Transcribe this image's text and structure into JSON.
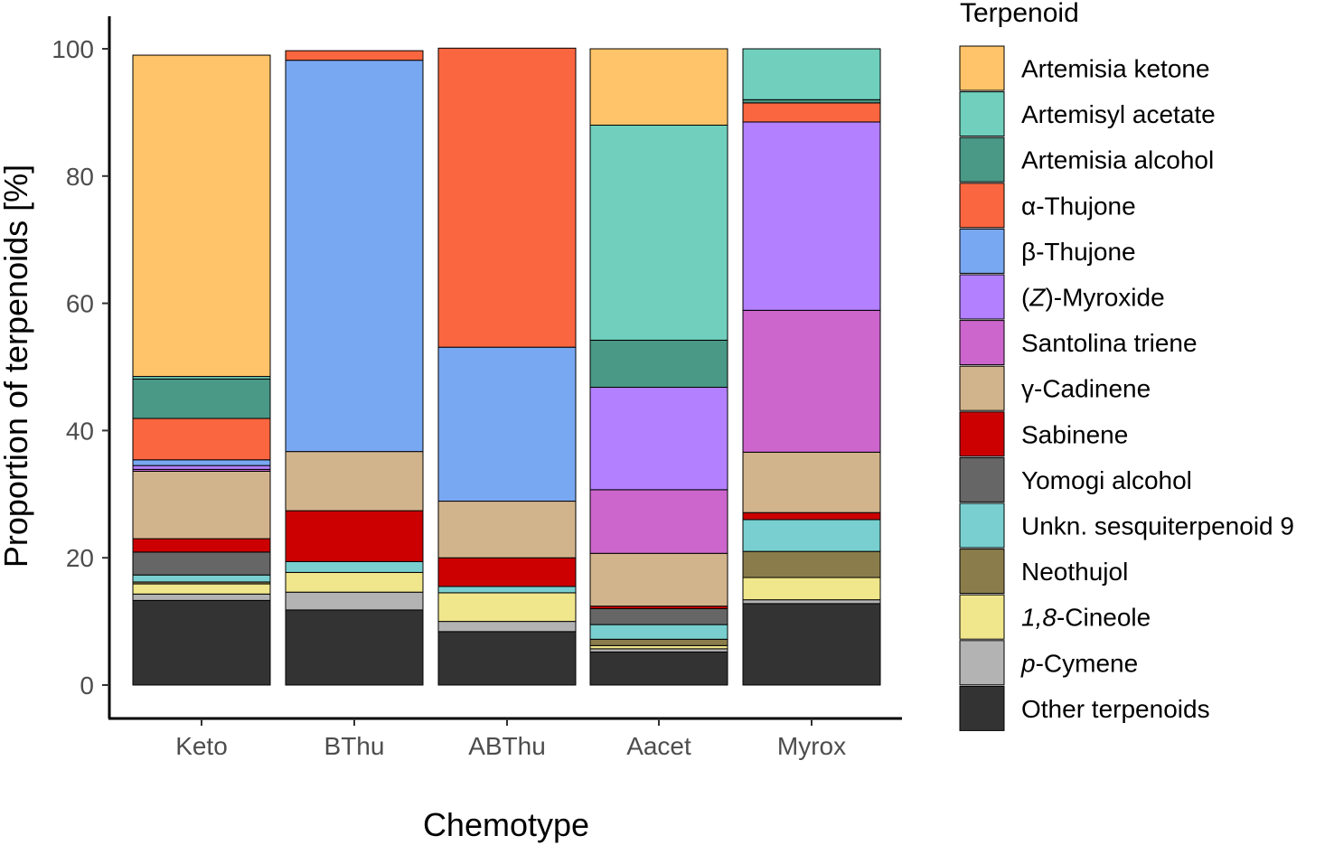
{
  "chart_data": {
    "type": "bar",
    "stacked": true,
    "xlabel": "Chemotype",
    "ylabel": "Proportion of terpenoids [%]",
    "ylim": [
      0,
      100
    ],
    "yticks": [
      0,
      20,
      40,
      60,
      80,
      100
    ],
    "categories": [
      "Keto",
      "BThu",
      "ABThu",
      "Aacet",
      "Myrox"
    ],
    "legend_title": "Terpenoid",
    "series": [
      {
        "name": "Other terpenoids",
        "color": "#333333",
        "values": [
          13.3,
          11.8,
          8.4,
          5.2,
          12.8
        ]
      },
      {
        "name": "p-Cymene",
        "prefix": "p",
        "suffix": "-Cymene",
        "color": "#b3b3b3",
        "values": [
          1.0,
          2.8,
          1.6,
          0.5,
          0.6
        ]
      },
      {
        "name": "1,8-Cineole",
        "prefix": "1,8",
        "suffix": "-Cineole",
        "color": "#f0e68c",
        "values": [
          1.6,
          3.1,
          4.5,
          0.5,
          3.5
        ]
      },
      {
        "name": "Neothujol",
        "color": "#8b7d4b",
        "values": [
          0.3,
          0.0,
          0.0,
          1.0,
          4.1
        ]
      },
      {
        "name": "Unkn. sesquiterpenoid 9",
        "color": "#79cfcf",
        "values": [
          1.1,
          1.7,
          1.0,
          2.3,
          5.0
        ]
      },
      {
        "name": "Yomogi alcohol",
        "color": "#666666",
        "values": [
          3.6,
          0.0,
          0.0,
          2.5,
          0.0
        ]
      },
      {
        "name": "Sabinene",
        "color": "#cc0000",
        "values": [
          2.1,
          8.0,
          4.5,
          0.4,
          1.1
        ]
      },
      {
        "name": "γ-Cadinene",
        "color": "#d2b48c",
        "values": [
          10.6,
          9.3,
          8.9,
          8.3,
          9.5
        ]
      },
      {
        "name": "Santolina triene",
        "color": "#cc66cc",
        "values": [
          0.3,
          0.0,
          0.0,
          10.0,
          22.3
        ]
      },
      {
        "name": "(Z)-Myroxide",
        "prefix": "(",
        "italic": "Z",
        "suffix": ")-Myroxide",
        "color": "#b380ff",
        "values": [
          0.6,
          0.0,
          0.0,
          16.1,
          29.6
        ]
      },
      {
        "name": "β-Thujone",
        "color": "#79a8f2",
        "values": [
          0.9,
          61.5,
          24.2,
          0.0,
          0.0
        ]
      },
      {
        "name": "α-Thujone",
        "color": "#fa6640",
        "values": [
          6.5,
          1.5,
          47.0,
          0.0,
          3.0
        ]
      },
      {
        "name": "Artemisia alcohol",
        "color": "#4a9886",
        "values": [
          6.2,
          0.0,
          0.0,
          7.4,
          0.5
        ]
      },
      {
        "name": "Artemisyl acetate",
        "color": "#70d0bd",
        "values": [
          0.4,
          0.0,
          0.0,
          33.8,
          8.0
        ]
      },
      {
        "name": "Artemisia ketone",
        "color": "#ffc469",
        "values": [
          50.5,
          0.0,
          0.0,
          12.0,
          0.0
        ]
      }
    ]
  }
}
